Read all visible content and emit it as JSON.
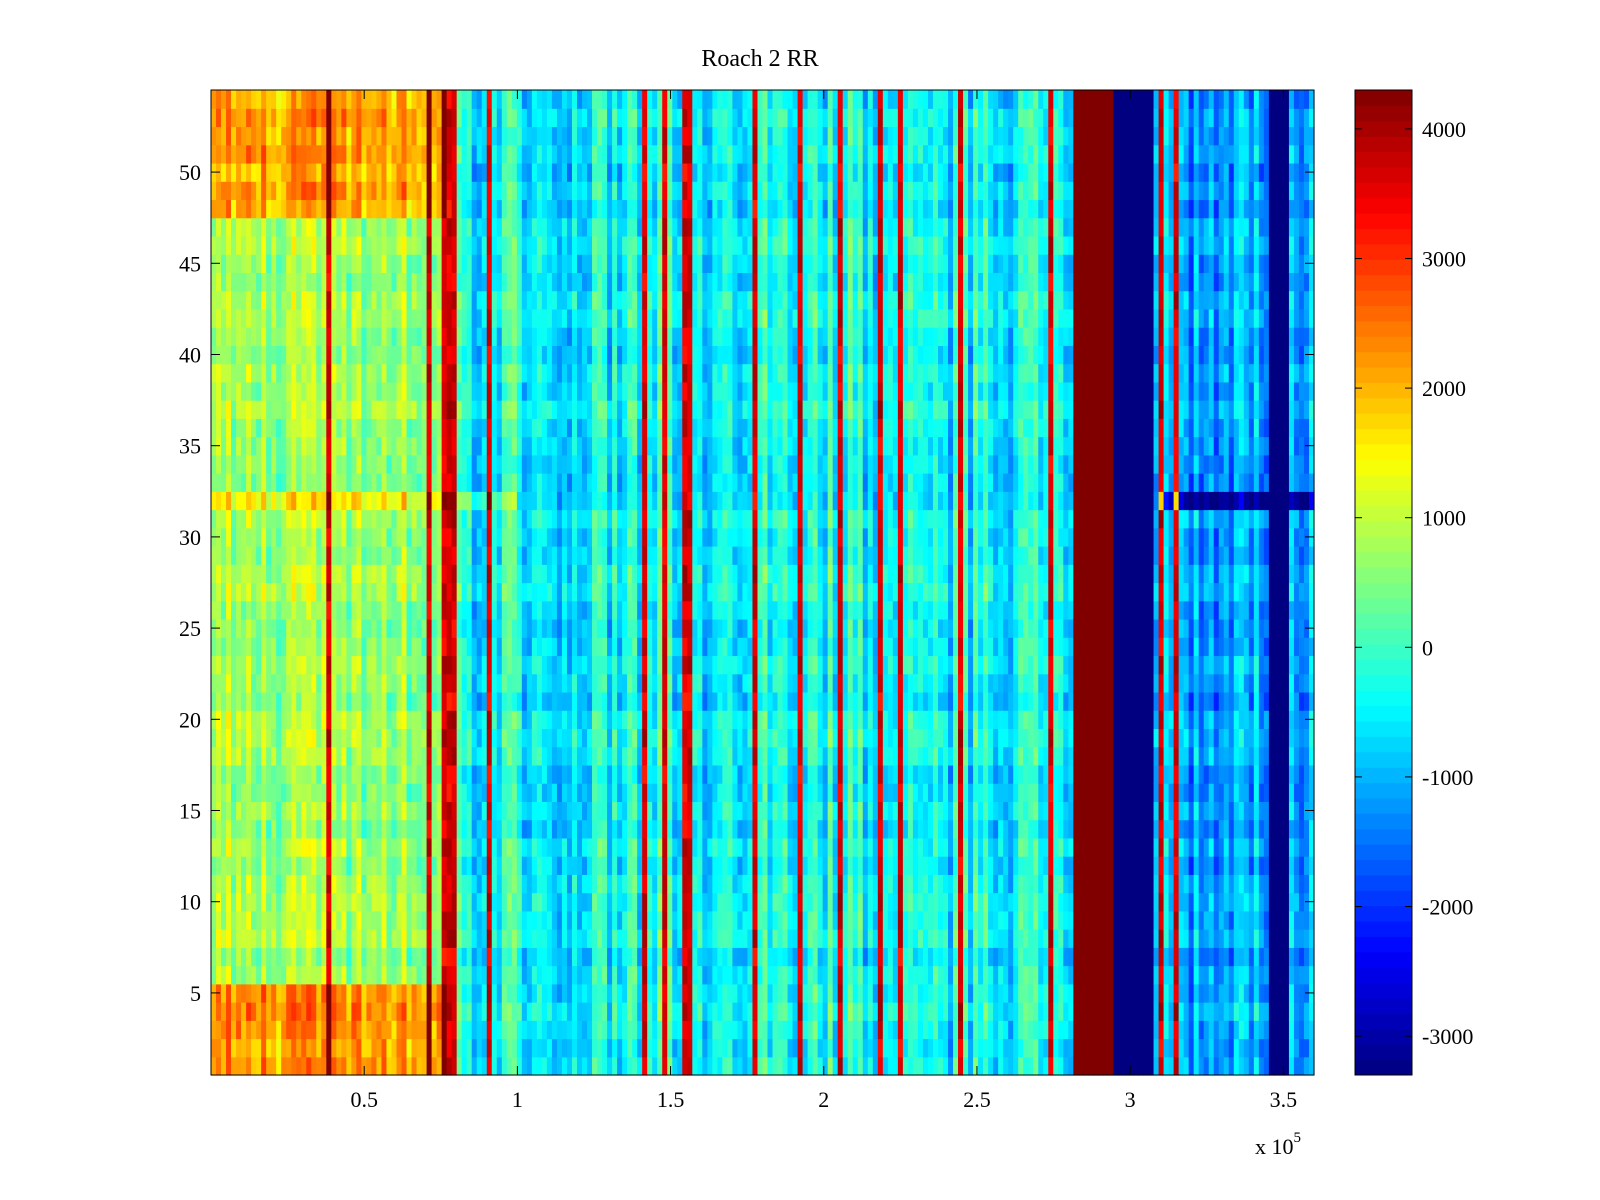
{
  "chart_data": {
    "type": "heatmap",
    "title": "Roach 2 RR",
    "xlabel": "",
    "ylabel": "",
    "x_multiplier_label": {
      "base": "x 10",
      "exponent": "5"
    },
    "xlim": [
      0,
      3.6
    ],
    "ylim": [
      0.5,
      54.5
    ],
    "x_ticks": [
      0.5,
      1,
      1.5,
      2,
      2.5,
      3,
      3.5
    ],
    "x_tick_labels": [
      "0.5",
      "1",
      "1.5",
      "2",
      "2.5",
      "3",
      "3.5"
    ],
    "y_ticks": [
      5,
      10,
      15,
      20,
      25,
      30,
      35,
      40,
      45,
      50
    ],
    "y_tick_labels": [
      "5",
      "10",
      "15",
      "20",
      "25",
      "30",
      "35",
      "40",
      "45",
      "50"
    ],
    "rows": 54,
    "colormap": "jet",
    "clim": [
      -3300,
      4300
    ],
    "colorbar": {
      "ticks": [
        4000,
        3000,
        2000,
        1000,
        0,
        -1000,
        -2000,
        -3000
      ],
      "tick_labels": [
        "4000",
        "3000",
        "2000",
        "1000",
        "0",
        "-1000",
        "-2000",
        "-3000"
      ]
    },
    "regions": [
      {
        "x_range": [
          0,
          0.77
        ],
        "typical_value": 800
      },
      {
        "x_range": [
          0.77,
          2.82
        ],
        "typical_value": -300
      },
      {
        "x_range": [
          2.82,
          2.95
        ],
        "value": 4300
      },
      {
        "x_range": [
          2.95,
          3.07
        ],
        "value": -3300
      },
      {
        "x_range": [
          3.07,
          3.6
        ],
        "typical_value": -1000
      }
    ],
    "grid": false
  }
}
